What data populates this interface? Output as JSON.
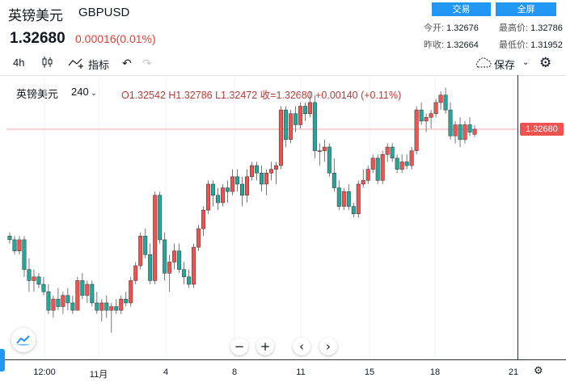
{
  "header": {
    "name": "英镑美元",
    "symbol": "GBPUSD",
    "trade_btn": "交易",
    "fullscreen_btn": "全屏",
    "price": "1.32680",
    "change": "0.00016(0.01%)"
  },
  "stats": {
    "open_label": "今开:",
    "open": "1.32676",
    "high_label": "最高价:",
    "high": "1.32786",
    "prev_close_label": "昨收:",
    "prev_close": "1.32664",
    "low_label": "最低价:",
    "low": "1.31952"
  },
  "toolbar": {
    "interval": "4h",
    "indicators": "指标",
    "save": "保存"
  },
  "legend": {
    "name": "英镑美元",
    "interval": "240",
    "ohlc": "O1.32542  H1.32786  L1.32472  收=1.32680  +0.00140 (+0.11%)"
  },
  "price_tag": "1.32680",
  "xaxis": {
    "labels": [
      "12:00",
      "11月",
      "4",
      "8",
      "11",
      "15",
      "18",
      "21"
    ]
  },
  "colors": {
    "up": "#26a69a",
    "down": "#ef5350",
    "accent": "#2196f3"
  },
  "chart_data": {
    "type": "candlestick",
    "series_note": "4h candles",
    "last_price": 1.3268,
    "candles": [
      [
        1.298,
        1.299,
        1.296,
        1.297
      ],
      [
        1.297,
        1.298,
        1.293,
        1.294
      ],
      [
        1.294,
        1.298,
        1.293,
        1.297
      ],
      [
        1.297,
        1.298,
        1.287,
        1.289
      ],
      [
        1.289,
        1.292,
        1.283,
        1.286
      ],
      [
        1.286,
        1.289,
        1.283,
        1.287
      ],
      [
        1.287,
        1.288,
        1.284,
        1.285
      ],
      [
        1.285,
        1.287,
        1.282,
        1.283
      ],
      [
        1.283,
        1.285,
        1.277,
        1.278
      ],
      [
        1.278,
        1.282,
        1.276,
        1.281
      ],
      [
        1.281,
        1.284,
        1.278,
        1.279
      ],
      [
        1.279,
        1.283,
        1.277,
        1.282
      ],
      [
        1.282,
        1.284,
        1.278,
        1.28
      ],
      [
        1.28,
        1.282,
        1.277,
        1.278
      ],
      [
        1.278,
        1.287,
        1.278,
        1.286
      ],
      [
        1.286,
        1.288,
        1.281,
        1.282
      ],
      [
        1.282,
        1.286,
        1.28,
        1.285
      ],
      [
        1.285,
        1.286,
        1.279,
        1.28
      ],
      [
        1.28,
        1.283,
        1.277,
        1.278
      ],
      [
        1.278,
        1.281,
        1.275,
        1.28
      ],
      [
        1.28,
        1.282,
        1.276,
        1.278
      ],
      [
        1.278,
        1.28,
        1.272,
        1.279
      ],
      [
        1.279,
        1.281,
        1.277,
        1.278
      ],
      [
        1.278,
        1.282,
        1.277,
        1.281
      ],
      [
        1.281,
        1.283,
        1.279,
        1.28
      ],
      [
        1.28,
        1.287,
        1.279,
        1.286
      ],
      [
        1.286,
        1.291,
        1.285,
        1.29
      ],
      [
        1.29,
        1.299,
        1.289,
        1.298
      ],
      [
        1.298,
        1.3,
        1.292,
        1.293
      ],
      [
        1.293,
        1.296,
        1.285,
        1.286
      ],
      [
        1.286,
        1.31,
        1.285,
        1.309
      ],
      [
        1.309,
        1.31,
        1.296,
        1.297
      ],
      [
        1.297,
        1.299,
        1.286,
        1.288
      ],
      [
        1.288,
        1.293,
        1.283,
        1.291
      ],
      [
        1.291,
        1.296,
        1.289,
        1.294
      ],
      [
        1.294,
        1.296,
        1.288,
        1.289
      ],
      [
        1.289,
        1.291,
        1.285,
        1.287
      ],
      [
        1.287,
        1.289,
        1.284,
        1.285
      ],
      [
        1.285,
        1.296,
        1.284,
        1.295
      ],
      [
        1.295,
        1.301,
        1.294,
        1.3
      ],
      [
        1.3,
        1.306,
        1.298,
        1.305
      ],
      [
        1.305,
        1.313,
        1.304,
        1.312
      ],
      [
        1.312,
        1.313,
        1.306,
        1.309
      ],
      [
        1.309,
        1.311,
        1.305,
        1.307
      ],
      [
        1.307,
        1.312,
        1.306,
        1.311
      ],
      [
        1.311,
        1.313,
        1.307,
        1.31
      ],
      [
        1.31,
        1.316,
        1.309,
        1.314
      ],
      [
        1.314,
        1.316,
        1.31,
        1.312
      ],
      [
        1.312,
        1.314,
        1.306,
        1.309
      ],
      [
        1.309,
        1.316,
        1.307,
        1.314
      ],
      [
        1.314,
        1.318,
        1.313,
        1.317
      ],
      [
        1.317,
        1.318,
        1.313,
        1.315
      ],
      [
        1.315,
        1.317,
        1.31,
        1.312
      ],
      [
        1.312,
        1.316,
        1.309,
        1.315
      ],
      [
        1.315,
        1.318,
        1.313,
        1.316
      ],
      [
        1.316,
        1.318,
        1.312,
        1.317
      ],
      [
        1.317,
        1.333,
        1.316,
        1.332
      ],
      [
        1.332,
        1.333,
        1.322,
        1.324
      ],
      [
        1.324,
        1.332,
        1.323,
        1.331
      ],
      [
        1.331,
        1.333,
        1.326,
        1.328
      ],
      [
        1.328,
        1.334,
        1.327,
        1.333
      ],
      [
        1.333,
        1.334,
        1.329,
        1.331
      ],
      [
        1.331,
        1.337,
        1.33,
        1.334
      ],
      [
        1.334,
        1.336,
        1.319,
        1.321
      ],
      [
        1.321,
        1.323,
        1.317,
        1.321
      ],
      [
        1.321,
        1.324,
        1.318,
        1.322
      ],
      [
        1.322,
        1.323,
        1.314,
        1.315
      ],
      [
        1.315,
        1.319,
        1.31,
        1.311
      ],
      [
        1.311,
        1.313,
        1.305,
        1.306
      ],
      [
        1.306,
        1.311,
        1.305,
        1.31
      ],
      [
        1.31,
        1.312,
        1.305,
        1.306
      ],
      [
        1.306,
        1.307,
        1.303,
        1.304
      ],
      [
        1.304,
        1.313,
        1.303,
        1.312
      ],
      [
        1.312,
        1.316,
        1.311,
        1.313
      ],
      [
        1.313,
        1.317,
        1.312,
        1.316
      ],
      [
        1.316,
        1.32,
        1.315,
        1.319
      ],
      [
        1.319,
        1.32,
        1.312,
        1.313
      ],
      [
        1.313,
        1.321,
        1.312,
        1.32
      ],
      [
        1.32,
        1.323,
        1.318,
        1.322
      ],
      [
        1.322,
        1.323,
        1.318,
        1.319
      ],
      [
        1.319,
        1.32,
        1.315,
        1.316
      ],
      [
        1.316,
        1.32,
        1.315,
        1.318
      ],
      [
        1.318,
        1.32,
        1.316,
        1.317
      ],
      [
        1.317,
        1.322,
        1.316,
        1.321
      ],
      [
        1.321,
        1.333,
        1.32,
        1.332
      ],
      [
        1.332,
        1.334,
        1.328,
        1.329
      ],
      [
        1.329,
        1.331,
        1.326,
        1.33
      ],
      [
        1.33,
        1.332,
        1.327,
        1.331
      ],
      [
        1.331,
        1.335,
        1.33,
        1.334
      ],
      [
        1.334,
        1.337,
        1.332,
        1.336
      ],
      [
        1.336,
        1.338,
        1.331,
        1.332
      ],
      [
        1.332,
        1.334,
        1.324,
        1.325
      ],
      [
        1.325,
        1.329,
        1.323,
        1.328
      ],
      [
        1.328,
        1.33,
        1.322,
        1.324
      ],
      [
        1.324,
        1.329,
        1.323,
        1.328
      ],
      [
        1.328,
        1.33,
        1.325,
        1.326
      ],
      [
        1.32542,
        1.32786,
        1.32472,
        1.3268
      ]
    ]
  }
}
